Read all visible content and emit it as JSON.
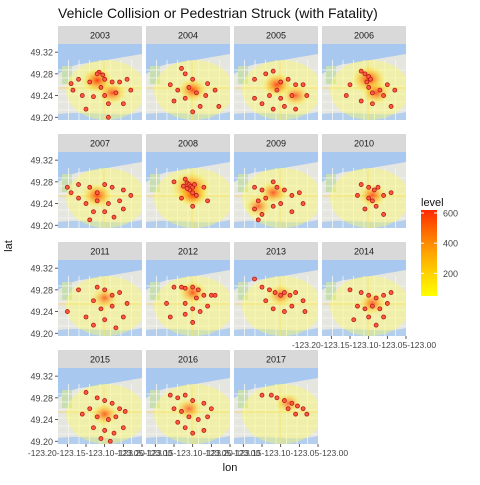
{
  "chart_data": {
    "type": "heatmap",
    "title": "Vehicle Collision or Pedestrian Struck (with Fatality)",
    "xlabel": "lon",
    "ylabel": "lat",
    "y_ticks": [
      "49.20",
      "49.24",
      "49.28",
      "49.32"
    ],
    "y_range": [
      49.195,
      49.335
    ],
    "x_tick_labels_text": "-123.20-123.15-123.10-123.05-123.00",
    "x_ticks": [
      "-123.20",
      "-123.15",
      "-123.10",
      "-123.05",
      "-123.00"
    ],
    "x_range": [
      -123.225,
      -123.0
    ],
    "legend": {
      "title": "level",
      "ticks": [
        200,
        400,
        600
      ],
      "range": [
        50,
        620
      ],
      "colors": [
        "#ffff00",
        "#ffd400",
        "#ffa500",
        "#ff6a00",
        "#ff2a00"
      ],
      "position": "right"
    },
    "point_fill": "#ff5a3c",
    "point_stroke": "#b01818",
    "panels": [
      {
        "year": "2003",
        "points": [
          [
            -123.19,
            49.262
          ],
          [
            -123.17,
            49.27
          ],
          [
            -123.14,
            49.265
          ],
          [
            -123.115,
            49.283
          ],
          [
            -123.12,
            49.28
          ],
          [
            -123.105,
            49.278
          ],
          [
            -123.1,
            49.27
          ],
          [
            -123.08,
            49.265
          ],
          [
            -123.06,
            49.265
          ],
          [
            -123.04,
            49.27
          ],
          [
            -123.03,
            49.25
          ],
          [
            -123.07,
            49.245
          ],
          [
            -123.1,
            49.24
          ],
          [
            -123.13,
            49.238
          ],
          [
            -123.16,
            49.24
          ],
          [
            -123.09,
            49.225
          ],
          [
            -123.05,
            49.225
          ],
          [
            -123.11,
            49.255
          ],
          [
            -123.185,
            49.25
          ],
          [
            -123.15,
            49.215
          ],
          [
            -123.09,
            49.2
          ]
        ],
        "hot": [
          [
            -123.12,
            49.268,
            0.6
          ],
          [
            -123.08,
            49.245,
            0.45
          ]
        ]
      },
      {
        "year": "2004",
        "points": [
          [
            -123.13,
            49.29
          ],
          [
            -123.12,
            49.28
          ],
          [
            -123.1,
            49.27
          ],
          [
            -123.16,
            49.26
          ],
          [
            -123.11,
            49.255
          ],
          [
            -123.09,
            49.245
          ],
          [
            -123.065,
            49.24
          ],
          [
            -123.04,
            49.25
          ],
          [
            -123.12,
            49.235
          ],
          [
            -123.15,
            49.23
          ],
          [
            -123.08,
            49.22
          ],
          [
            -123.1,
            49.21
          ],
          [
            -123.03,
            49.22
          ],
          [
            -123.14,
            49.25
          ],
          [
            -123.06,
            49.262
          ]
        ],
        "hot": [
          [
            -123.1,
            49.25,
            0.5
          ]
        ]
      },
      {
        "year": "2005",
        "points": [
          [
            -123.17,
            49.27
          ],
          [
            -123.14,
            49.28
          ],
          [
            -123.12,
            49.285
          ],
          [
            -123.1,
            49.265
          ],
          [
            -123.08,
            49.27
          ],
          [
            -123.06,
            49.26
          ],
          [
            -123.04,
            49.26
          ],
          [
            -123.03,
            49.24
          ],
          [
            -123.07,
            49.24
          ],
          [
            -123.1,
            49.235
          ],
          [
            -123.13,
            49.24
          ],
          [
            -123.15,
            49.225
          ],
          [
            -123.11,
            49.25
          ],
          [
            -123.09,
            49.22
          ],
          [
            -123.06,
            49.215
          ],
          [
            -123.17,
            49.235
          ],
          [
            -123.12,
            49.215
          ]
        ],
        "hot": [
          [
            -123.11,
            49.26,
            0.55
          ],
          [
            -123.06,
            49.24,
            0.4
          ]
        ]
      },
      {
        "year": "2006",
        "points": [
          [
            -123.12,
            49.285
          ],
          [
            -123.11,
            49.28
          ],
          [
            -123.1,
            49.275
          ],
          [
            -123.105,
            49.265
          ],
          [
            -123.095,
            49.27
          ],
          [
            -123.1,
            49.255
          ],
          [
            -123.09,
            49.245
          ],
          [
            -123.07,
            49.25
          ],
          [
            -123.05,
            49.26
          ],
          [
            -123.03,
            49.25
          ],
          [
            -123.06,
            49.24
          ],
          [
            -123.09,
            49.225
          ],
          [
            -123.12,
            49.23
          ],
          [
            -123.15,
            49.26
          ],
          [
            -123.16,
            49.24
          ],
          [
            -123.04,
            49.22
          ]
        ],
        "hot": [
          [
            -123.1,
            49.27,
            0.75
          ],
          [
            -123.08,
            49.245,
            0.45
          ]
        ]
      },
      {
        "year": "2007",
        "points": [
          [
            -123.2,
            49.27
          ],
          [
            -123.17,
            49.275
          ],
          [
            -123.14,
            49.27
          ],
          [
            -123.12,
            49.26
          ],
          [
            -123.1,
            49.275
          ],
          [
            -123.08,
            49.27
          ],
          [
            -123.05,
            49.265
          ],
          [
            -123.03,
            49.255
          ],
          [
            -123.06,
            49.245
          ],
          [
            -123.09,
            49.24
          ],
          [
            -123.12,
            49.245
          ],
          [
            -123.15,
            49.24
          ],
          [
            -123.17,
            49.25
          ],
          [
            -123.13,
            49.225
          ],
          [
            -123.1,
            49.225
          ],
          [
            -123.075,
            49.215
          ],
          [
            -123.05,
            49.23
          ],
          [
            -123.14,
            49.21
          ],
          [
            -123.19,
            49.26
          ]
        ],
        "hot": [
          [
            -123.12,
            49.255,
            0.55
          ]
        ]
      },
      {
        "year": "2008",
        "points": [
          [
            -123.12,
            49.285
          ],
          [
            -123.115,
            49.278
          ],
          [
            -123.11,
            49.275
          ],
          [
            -123.105,
            49.272
          ],
          [
            -123.1,
            49.27
          ],
          [
            -123.108,
            49.265
          ],
          [
            -123.115,
            49.268
          ],
          [
            -123.095,
            49.275
          ],
          [
            -123.1,
            49.26
          ],
          [
            -123.125,
            49.272
          ],
          [
            -123.09,
            49.255
          ],
          [
            -123.07,
            49.27
          ],
          [
            -123.13,
            49.25
          ],
          [
            -123.15,
            49.28
          ],
          [
            -123.06,
            49.245
          ],
          [
            -123.1,
            49.235
          ]
        ],
        "hot": [
          [
            -123.105,
            49.27,
            1.0
          ],
          [
            -123.1,
            49.255,
            0.5
          ]
        ]
      },
      {
        "year": "2009",
        "points": [
          [
            -123.17,
            49.27
          ],
          [
            -123.15,
            49.265
          ],
          [
            -123.12,
            49.28
          ],
          [
            -123.11,
            49.27
          ],
          [
            -123.09,
            49.265
          ],
          [
            -123.07,
            49.255
          ],
          [
            -123.05,
            49.26
          ],
          [
            -123.14,
            49.25
          ],
          [
            -123.16,
            49.245
          ],
          [
            -123.17,
            49.23
          ],
          [
            -123.15,
            49.22
          ],
          [
            -123.16,
            49.21
          ],
          [
            -123.12,
            49.235
          ],
          [
            -123.1,
            49.24
          ],
          [
            -123.07,
            49.225
          ],
          [
            -123.04,
            49.24
          ]
        ],
        "hot": [
          [
            -123.12,
            49.26,
            0.45
          ],
          [
            -123.16,
            49.235,
            0.35
          ]
        ]
      },
      {
        "year": "2010",
        "points": [
          [
            -123.12,
            49.275
          ],
          [
            -123.1,
            49.27
          ],
          [
            -123.085,
            49.265
          ],
          [
            -123.075,
            49.27
          ],
          [
            -123.06,
            49.255
          ],
          [
            -123.04,
            49.26
          ],
          [
            -123.1,
            49.25
          ],
          [
            -123.09,
            49.245
          ],
          [
            -123.08,
            49.235
          ],
          [
            -123.11,
            49.23
          ],
          [
            -123.06,
            49.22
          ],
          [
            -123.13,
            49.255
          ]
        ],
        "hot": [
          [
            -123.09,
            49.255,
            0.45
          ]
        ]
      },
      {
        "year": "2011",
        "points": [
          [
            -123.2,
            49.24
          ],
          [
            -123.17,
            49.28
          ],
          [
            -123.12,
            49.285
          ],
          [
            -123.1,
            49.28
          ],
          [
            -123.08,
            49.27
          ],
          [
            -123.06,
            49.275
          ],
          [
            -123.04,
            49.255
          ],
          [
            -123.08,
            49.25
          ],
          [
            -123.11,
            49.245
          ],
          [
            -123.13,
            49.26
          ],
          [
            -123.15,
            49.23
          ],
          [
            -123.1,
            49.225
          ],
          [
            -123.05,
            49.23
          ],
          [
            -123.07,
            49.21
          ],
          [
            -123.13,
            49.215
          ]
        ],
        "hot": [
          [
            -123.1,
            49.265,
            0.35
          ]
        ]
      },
      {
        "year": "2012",
        "points": [
          [
            -123.15,
            49.285
          ],
          [
            -123.13,
            49.285
          ],
          [
            -123.12,
            49.283
          ],
          [
            -123.1,
            49.285
          ],
          [
            -123.085,
            49.28
          ],
          [
            -123.07,
            49.27
          ],
          [
            -123.05,
            49.27
          ],
          [
            -123.04,
            49.27
          ],
          [
            -123.09,
            49.265
          ],
          [
            -123.12,
            49.255
          ],
          [
            -123.1,
            49.245
          ],
          [
            -123.08,
            49.24
          ],
          [
            -123.06,
            49.25
          ],
          [
            -123.1,
            49.22
          ],
          [
            -123.12,
            49.235
          ],
          [
            -123.17,
            49.255
          ],
          [
            -123.16,
            49.23
          ]
        ],
        "hot": [
          [
            -123.1,
            49.275,
            0.45
          ]
        ]
      },
      {
        "year": "2013",
        "points": [
          [
            -123.17,
            49.3
          ],
          [
            -123.15,
            49.285
          ],
          [
            -123.13,
            49.28
          ],
          [
            -123.115,
            49.275
          ],
          [
            -123.1,
            49.27
          ],
          [
            -123.09,
            49.275
          ],
          [
            -123.075,
            49.27
          ],
          [
            -123.06,
            49.275
          ],
          [
            -123.04,
            49.26
          ],
          [
            -123.035,
            49.24
          ],
          [
            -123.07,
            49.25
          ],
          [
            -123.09,
            49.24
          ],
          [
            -123.12,
            49.245
          ],
          [
            -123.14,
            49.26
          ]
        ],
        "hot": [
          [
            -123.1,
            49.27,
            0.4
          ]
        ]
      },
      {
        "year": "2014",
        "points": [
          [
            -123.15,
            49.28
          ],
          [
            -123.12,
            49.275
          ],
          [
            -123.1,
            49.27
          ],
          [
            -123.08,
            49.265
          ],
          [
            -123.06,
            49.27
          ],
          [
            -123.04,
            49.275
          ],
          [
            -123.05,
            49.255
          ],
          [
            -123.07,
            49.245
          ],
          [
            -123.09,
            49.25
          ],
          [
            -123.11,
            49.245
          ],
          [
            -123.13,
            49.25
          ],
          [
            -123.1,
            49.23
          ],
          [
            -123.08,
            49.215
          ],
          [
            -123.14,
            49.225
          ],
          [
            -123.06,
            49.23
          ]
        ],
        "hot": [
          [
            -123.09,
            49.255,
            0.4
          ]
        ]
      },
      {
        "year": "2015",
        "points": [
          [
            -123.15,
            49.29
          ],
          [
            -123.12,
            49.28
          ],
          [
            -123.1,
            49.275
          ],
          [
            -123.08,
            49.27
          ],
          [
            -123.06,
            49.26
          ],
          [
            -123.045,
            49.255
          ],
          [
            -123.07,
            49.245
          ],
          [
            -123.09,
            49.24
          ],
          [
            -123.12,
            49.245
          ],
          [
            -123.14,
            49.26
          ],
          [
            -123.16,
            49.25
          ],
          [
            -123.13,
            49.225
          ],
          [
            -123.1,
            49.22
          ],
          [
            -123.075,
            49.215
          ],
          [
            -123.05,
            49.225
          ],
          [
            -123.11,
            49.205
          ],
          [
            -123.085,
            49.2
          ]
        ],
        "hot": [
          [
            -123.1,
            49.25,
            0.4
          ]
        ]
      },
      {
        "year": "2016",
        "points": [
          [
            -123.16,
            49.285
          ],
          [
            -123.14,
            49.28
          ],
          [
            -123.12,
            49.285
          ],
          [
            -123.1,
            49.275
          ],
          [
            -123.07,
            49.27
          ],
          [
            -123.05,
            49.26
          ],
          [
            -123.06,
            49.245
          ],
          [
            -123.085,
            49.24
          ],
          [
            -123.11,
            49.245
          ],
          [
            -123.13,
            49.255
          ],
          [
            -123.15,
            49.26
          ],
          [
            -123.14,
            49.235
          ],
          [
            -123.12,
            49.225
          ],
          [
            -123.1,
            49.215
          ],
          [
            -123.07,
            49.22
          ]
        ],
        "hot": [
          [
            -123.11,
            49.26,
            0.35
          ]
        ]
      },
      {
        "year": "2017",
        "points": [
          [
            -123.15,
            49.285
          ],
          [
            -123.125,
            49.285
          ],
          [
            -123.11,
            49.28
          ],
          [
            -123.09,
            49.275
          ],
          [
            -123.07,
            49.27
          ],
          [
            -123.055,
            49.265
          ],
          [
            -123.04,
            49.26
          ],
          [
            -123.03,
            49.25
          ],
          [
            -123.06,
            49.25
          ],
          [
            -123.08,
            49.26
          ]
        ],
        "hot": [
          [
            -123.08,
            49.27,
            0.3
          ]
        ]
      }
    ]
  }
}
